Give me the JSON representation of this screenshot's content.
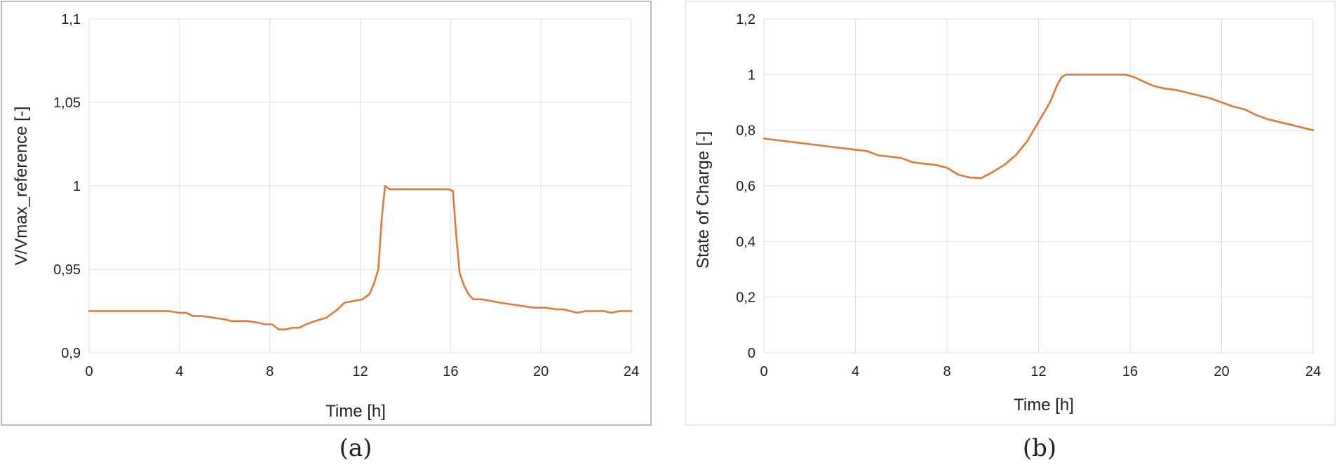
{
  "style": {
    "line_color": "#e07a3c",
    "grid_color": "#e2e2e2"
  },
  "chart_data": [
    {
      "type": "line",
      "caption": "(a)",
      "xlabel": "Time [h]",
      "ylabel": "V/Vmax_reference [-]",
      "xlim": [
        0,
        24
      ],
      "ylim": [
        0.9,
        1.1
      ],
      "xticks": [
        0,
        4,
        8,
        12,
        16,
        20,
        24
      ],
      "yticks": [
        0.9,
        0.95,
        1,
        1.05,
        1.1
      ],
      "xtick_labels": [
        "0",
        "4",
        "8",
        "12",
        "16",
        "20",
        "24"
      ],
      "ytick_labels": [
        "0,9",
        "0,95",
        "1",
        "1,05",
        "1,1"
      ],
      "grid": true,
      "series": [
        {
          "x": [
            0,
            0.5,
            1,
            1.5,
            2,
            2.5,
            3,
            3.5,
            4,
            4.3,
            4.6,
            5,
            5.5,
            6,
            6.3,
            6.6,
            7,
            7.5,
            7.8,
            8.1,
            8.4,
            8.7,
            9,
            9.3,
            9.6,
            10,
            10.5,
            11,
            11.3,
            11.7,
            12.1,
            12.4,
            12.6,
            12.8,
            12.95,
            13.1,
            13.3,
            13.6,
            14,
            14.5,
            15,
            15.5,
            15.9,
            16.1,
            16.25,
            16.4,
            16.6,
            16.8,
            17,
            17.4,
            17.8,
            18.2,
            18.7,
            19.2,
            19.7,
            20.2,
            20.7,
            21,
            21.3,
            21.6,
            22,
            22.5,
            22.8,
            23.1,
            23.5,
            24
          ],
          "y": [
            0.925,
            0.925,
            0.925,
            0.925,
            0.925,
            0.925,
            0.925,
            0.925,
            0.924,
            0.924,
            0.922,
            0.922,
            0.921,
            0.92,
            0.919,
            0.919,
            0.919,
            0.918,
            0.917,
            0.917,
            0.914,
            0.914,
            0.915,
            0.915,
            0.917,
            0.919,
            0.921,
            0.926,
            0.93,
            0.931,
            0.932,
            0.935,
            0.941,
            0.95,
            0.98,
            1.0,
            0.998,
            0.998,
            0.998,
            0.998,
            0.998,
            0.998,
            0.998,
            0.997,
            0.97,
            0.948,
            0.94,
            0.935,
            0.932,
            0.932,
            0.931,
            0.93,
            0.929,
            0.928,
            0.927,
            0.927,
            0.926,
            0.926,
            0.925,
            0.924,
            0.925,
            0.925,
            0.925,
            0.924,
            0.925,
            0.925
          ]
        }
      ]
    },
    {
      "type": "line",
      "caption": "(b)",
      "xlabel": "Time [h]",
      "ylabel": "State of Charge [-]",
      "xlim": [
        0,
        24
      ],
      "ylim": [
        0,
        1.2
      ],
      "xticks": [
        0,
        4,
        8,
        12,
        16,
        20,
        24
      ],
      "yticks": [
        0,
        0.2,
        0.4,
        0.6,
        0.8,
        1,
        1.2
      ],
      "xtick_labels": [
        "0",
        "4",
        "8",
        "12",
        "16",
        "20",
        "24"
      ],
      "ytick_labels": [
        "0",
        "0,2",
        "0,4",
        "0,6",
        "0,8",
        "1",
        "1,2"
      ],
      "grid": true,
      "series": [
        {
          "x": [
            0,
            1,
            2,
            3,
            4,
            4.5,
            5,
            5.5,
            6,
            6.5,
            7,
            7.5,
            8,
            8.5,
            9,
            9.5,
            10,
            10.5,
            11,
            11.5,
            12,
            12.5,
            12.8,
            13,
            13.2,
            14,
            15,
            15.8,
            16.2,
            16.6,
            17,
            17.5,
            18,
            18.5,
            19,
            19.5,
            20,
            20.5,
            21,
            21.5,
            22,
            22.5,
            23,
            23.5,
            24
          ],
          "y": [
            0.77,
            0.76,
            0.75,
            0.74,
            0.73,
            0.725,
            0.71,
            0.705,
            0.7,
            0.685,
            0.68,
            0.675,
            0.665,
            0.64,
            0.63,
            0.628,
            0.65,
            0.675,
            0.71,
            0.76,
            0.83,
            0.9,
            0.96,
            0.99,
            1.0,
            1.0,
            1.0,
            1.0,
            0.99,
            0.975,
            0.96,
            0.95,
            0.945,
            0.935,
            0.925,
            0.915,
            0.9,
            0.885,
            0.875,
            0.855,
            0.84,
            0.83,
            0.82,
            0.81,
            0.8
          ]
        }
      ]
    }
  ]
}
